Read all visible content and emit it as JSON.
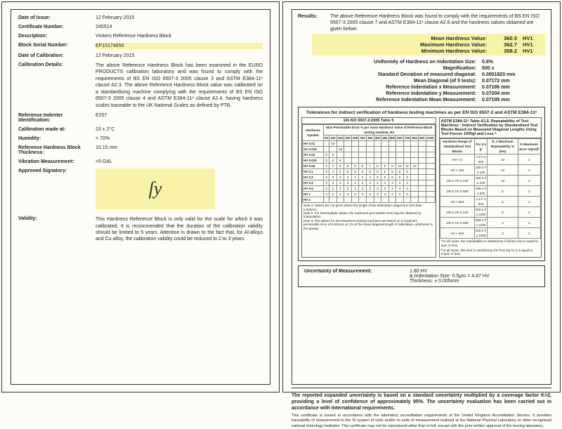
{
  "left": {
    "dateOfIssue": {
      "label": "Date of Issue:",
      "value": "12 February 2015"
    },
    "certNo": {
      "label": "Certificate Number:",
      "value": "245514"
    },
    "description": {
      "label": "Description:",
      "value": "Vickers Reference Hardness Block"
    },
    "serial": {
      "label": "Block Serial Number:",
      "value": "EP15174650"
    },
    "dateCal": {
      "label": "Date of Calibration:",
      "value": "12 February 2015"
    },
    "calDetails": {
      "label": "Calibration Details:",
      "value": "The above Reference Hardness Block has been examined in the EURO PRODUCTS calibration laboratory and was found to comply with the requirements of BS EN ISO 6507-3 2005 clause 3 and ASTM E384-11ᵉ clause A2.3. The above Reference Hardness Block value was calibrated on a standardising machine complying with the requirements of BS EN ISO 6507-3 2005 clause 4 and ASTM E384-11ᵉ clause A2.4, having hardness scales traceable to the UK National Scales as defined by PTB."
    },
    "indenter": {
      "label": "Reference Indenter Identification:",
      "value": "E207"
    },
    "calAt": {
      "label": "Calibration made at:",
      "value": "23 ± 2°C"
    },
    "humidity": {
      "label": "Humidity:",
      "value": "< 70%"
    },
    "thickness": {
      "label": "Reference Hardness Block Thickness:",
      "value": "10.15 mm"
    },
    "vibration": {
      "label": "Vibration Measurement:",
      "value": "<5 GAL"
    },
    "signatory": {
      "label": "Approved Signatory:"
    },
    "validity": {
      "label": "Validity:",
      "value": "This Hardness Reference Block is only valid for the scale for which it was calibrated. It is recommended that the duration of the calibration validity should be limited to 5 years. Attention is drawn to the fact that, for Al-alloys and Cu-alloy, the calibration validity could be reduced to 2 to 3 years."
    }
  },
  "right": {
    "resultsLabel": "Results:",
    "resultsText": "The above Reference Hardness Block was found to comply with the requirements of BS EN ISO 6507-3 2005 clause 7 and ASTM E384-11ᵉ clause A2.6 and the hardness values obtained are given below:",
    "mean": {
      "k": "Mean Hardness Value:",
      "v": "360.5",
      "u": "HV1"
    },
    "max": {
      "k": "Maximum Hardness Value:",
      "v": "362.7",
      "u": "HV1"
    },
    "min": {
      "k": "Minimum Hardness Value:",
      "v": "358.2",
      "u": "HV1"
    },
    "metrics": [
      {
        "k": "Uniformity of Hardness on Indentation Size:",
        "v": "0.6%"
      },
      {
        "k": "Magnification:",
        "v": "500 x"
      },
      {
        "k": "Standard Deviation of measured diagonal:",
        "v": "0.0001820 mm"
      },
      {
        "k": "Mean Diagonal (of 5 tests):",
        "v": "0.07172 mm"
      },
      {
        "k": "Reference Indentation x Measurement:",
        "v": "0.07186 mm"
      },
      {
        "k": "Reference Indentation y Measurement:",
        "v": "0.07204 mm"
      },
      {
        "k": "Reference Indentation Mean Measurement:",
        "v": "0.07195 mm"
      }
    ],
    "tolTitle": "Tolerances for indirect verification of hardness testing machines as per EN ISO 6507-2 and ASTM E384-11ᵉ",
    "tolLeftTitle": "EN ISO 6507-2:2005 Table 5",
    "tolRightTitle": "ASTM E384-11ᵉ Table A1.5. Repeatability of Test Machines - Indirect Verification by Standardised Test Blocks Based on Measured Diagonal Lengths Using Test Forces 1000gf and Less ᴬ",
    "tblHardSym": "Hardness Symbol",
    "tblHardSub": "Max Permissible Error % per mean Hardness Value of Reference Block testing machine, HV",
    "hvRows": [
      "HV 0.01",
      "HV 0.015",
      "HV 0.02",
      "HV 0.025",
      "HV 0.05",
      "HV 0.1",
      "HV 0.2",
      "HV 0.3",
      "HV 0.5",
      "HV 1",
      "HV 2"
    ],
    "hvCols": [
      "50",
      "100",
      "150",
      "200",
      "250",
      "300",
      "350",
      "400",
      "450",
      "500",
      "600",
      "700",
      "800",
      "900",
      "1000"
    ],
    "hvCellsSample": [
      "",
      "15",
      "",
      "",
      "",
      "",
      "",
      "",
      "",
      "",
      "",
      "",
      "",
      "",
      "",
      "",
      "",
      "16",
      "",
      "",
      "",
      "",
      "",
      "",
      "",
      "",
      "",
      "",
      "",
      "",
      "6",
      "9",
      "",
      "",
      "",
      "",
      "",
      "",
      "",
      "",
      "",
      "",
      "",
      "",
      "",
      "5",
      "6",
      "8",
      "",
      "",
      "",
      "",
      "",
      "",
      "",
      "",
      "",
      "",
      "",
      "",
      "4",
      "4",
      "5",
      "6",
      "6",
      "6",
      "7",
      "8",
      "8",
      "9",
      "10",
      "11",
      "12",
      "",
      "",
      "3",
      "4",
      "4",
      "5",
      "5",
      "5",
      "5",
      "5",
      "5",
      "5",
      "5",
      "5",
      "",
      "",
      "",
      "3",
      "3",
      "3",
      "4",
      "4",
      "4",
      "4",
      "5",
      "5",
      "5",
      "5",
      "5",
      "",
      "",
      "",
      "3",
      "3",
      "3",
      "3",
      "4",
      "4",
      "4",
      "4",
      "4",
      "4",
      "4",
      "4",
      "",
      "",
      "",
      "2",
      "3",
      "3",
      "3",
      "3",
      "3",
      "3",
      "3",
      "3",
      "4",
      "4",
      "4",
      "",
      "",
      "",
      "2",
      "2",
      "2",
      "3",
      "3",
      "3",
      "3",
      "3",
      "3",
      "3",
      "3",
      "3",
      "",
      "",
      "",
      "",
      "",
      "",
      "",
      "",
      "",
      "",
      "",
      "",
      "",
      "",
      "",
      "",
      "",
      ""
    ],
    "tolLeftNotes": "Note 1: Values are not given where the length of the indentation diagonal is less than 0.020mm.\nNote 2: For intermediate values, the maximum permissible error may be obtained by interpolation.\nNote 3: The values for microhardness testing machines are based on a maximum permissible error of 0.001mm or 2% of the mean diagonal length of indentation, whichever is the greater.",
    "astmCols": [
      "Hardness Range of Standardised Test Blocks",
      "For d ≤ g²",
      "R_s Maximum Repeatability % (≤%)",
      "E Maximum Error %(≤%)ᴮ"
    ],
    "astmRows": [
      [
        "HV < 0",
        "1 ≤ F ≤ 500",
        "13",
        "3"
      ],
      [
        "HV < 100",
        "100 ≤ F ≤ 150",
        "13",
        "3"
      ],
      [
        "100 ≤ HV ≤ 240",
        "150 ≤ F ≤ 240",
        "13",
        "2"
      ],
      [
        "240 ≤ HV ≤ 600",
        "180 ≤ F ≤ 500",
        "5",
        "2"
      ],
      [
        "HV > 600",
        "1 ≤ F ≤ 500",
        "5",
        "3"
      ],
      [
        "100 ≤ HV ≤ 240",
        "500 ≤ F ≤ 1000",
        "8",
        "2"
      ],
      [
        "240 ≤ HV ≤ 600",
        "500 ≤ F ≤ 1000",
        "4",
        "2"
      ],
      [
        "HV > 600",
        "500 ≤ F ≤ 1000",
        "3",
        "2"
      ]
    ],
    "astmNoteA": "ᴬ In all cases, the repeatability is satisfactory if d(max-min) is equal to 1μm or less.",
    "astmNoteB": "ᴮ In all cases, the error is satisfactory if E from Eq A1.2 is equal to 0.5μm or less.",
    "uomLabel": "Uncertainty of Measurement:",
    "uom1": "1.80 HV",
    "uom2": "& Indentation Size: 0.5μm = 4.87 HV",
    "uom3": "Thickness: ± 0.005mm",
    "footerBold": "The reported expanded uncertainty is based on a standard uncertainty multiplied by a coverage factor K=2, providing a level of confidence of approximately 95%. The uncertainty evaluation has been carried out in accordance with International requirements.",
    "footerSmall": "This certificate is issued in accordance with the laboratory accreditation requirements of the United Kingdom Accreditation Service. It provides traceability of measurement to the SI system of units and/or to units of measurement realised at the National Physical Laboratory or other recognised national metrology institutes. This certificate may not be reproduced other than in full, except with the prior written approval of the issuing laboratory."
  }
}
